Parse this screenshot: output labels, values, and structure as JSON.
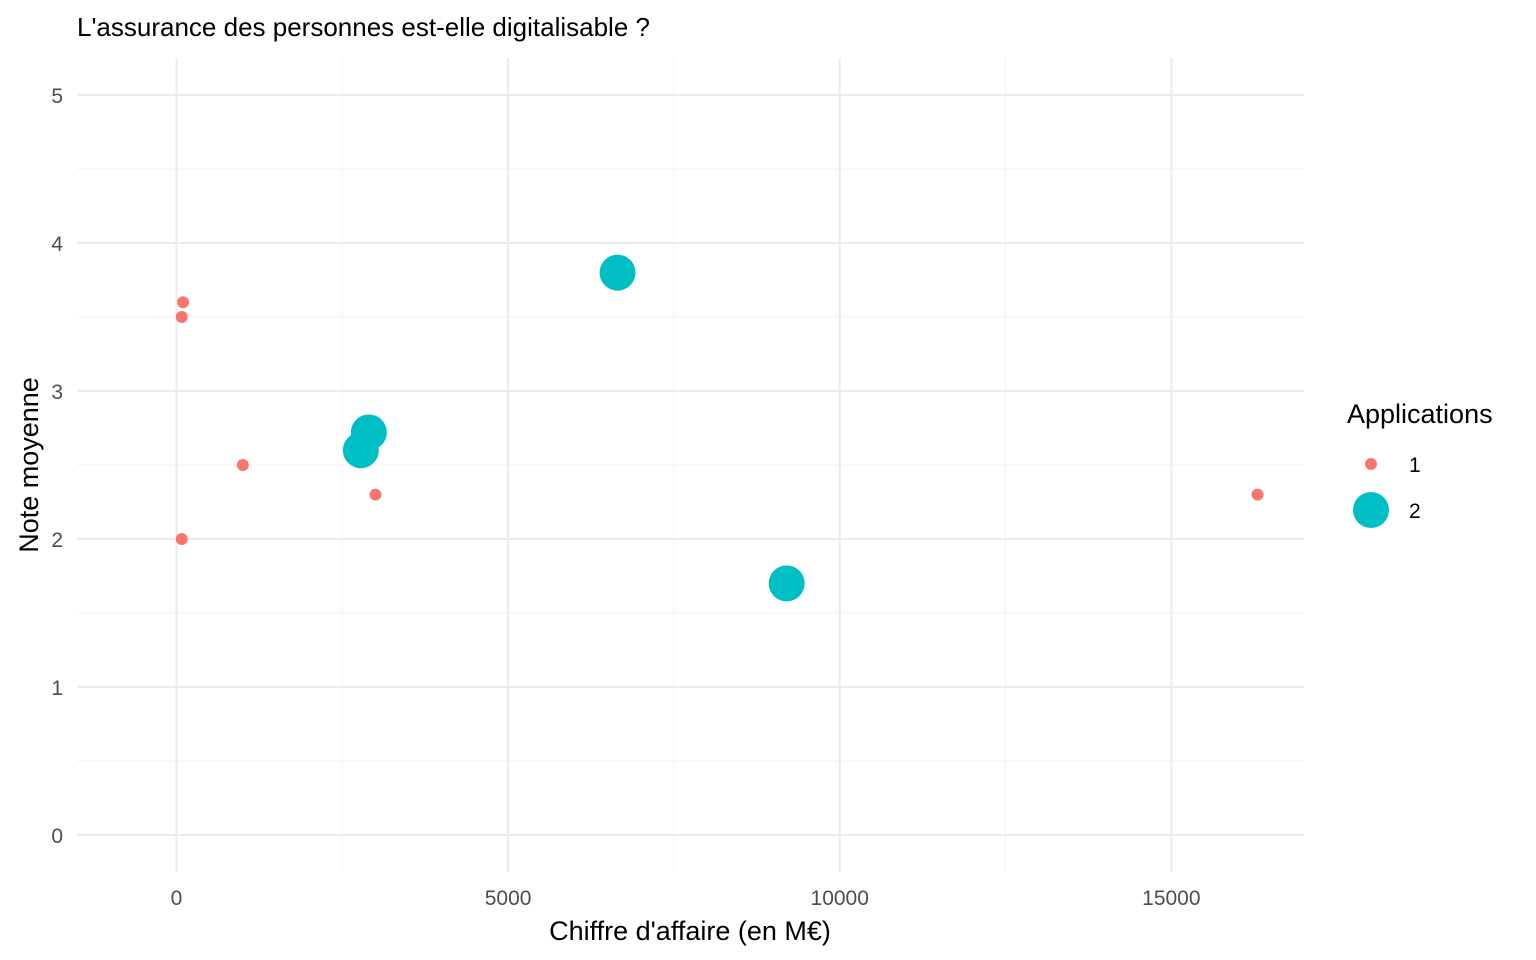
{
  "chart_data": {
    "type": "scatter",
    "title": "L'assurance des personnes est-elle digitalisable ?",
    "xlabel": "Chiffre d'affaire (en M€)",
    "ylabel": "Note moyenne",
    "xlim": [
      -1500,
      17000
    ],
    "ylim": [
      -0.25,
      5.25
    ],
    "x_ticks": [
      0,
      5000,
      10000,
      15000
    ],
    "x_tick_labels": [
      "0",
      "5000",
      "10000",
      "15000"
    ],
    "y_ticks": [
      0,
      1,
      2,
      3,
      4,
      5
    ],
    "y_tick_labels": [
      "0",
      "1",
      "2",
      "3",
      "4",
      "5"
    ],
    "grid": true,
    "legend": {
      "title": "Applications",
      "position": "right",
      "entries": [
        {
          "label": "1",
          "color": "#F8766D",
          "size": "small"
        },
        {
          "label": "2",
          "color": "#00BFC4",
          "size": "large"
        }
      ]
    },
    "series": [
      {
        "name": "1",
        "color": "#F8766D",
        "points": [
          {
            "x": 100,
            "y": 3.6
          },
          {
            "x": 80,
            "y": 3.5
          },
          {
            "x": 1000,
            "y": 2.5
          },
          {
            "x": 80,
            "y": 2.0
          },
          {
            "x": 3000,
            "y": 2.3
          },
          {
            "x": 16300,
            "y": 2.3
          }
        ]
      },
      {
        "name": "2",
        "color": "#00BFC4",
        "points": [
          {
            "x": 6650,
            "y": 3.8
          },
          {
            "x": 2900,
            "y": 2.72
          },
          {
            "x": 2780,
            "y": 2.6
          },
          {
            "x": 9200,
            "y": 1.7
          }
        ]
      }
    ]
  }
}
